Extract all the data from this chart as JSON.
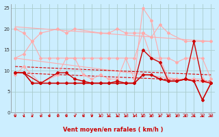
{
  "background_color": "#cceeff",
  "grid_color": "#aacccc",
  "xlim": [
    -0.5,
    23.5
  ],
  "ylim": [
    0,
    26
  ],
  "yticks": [
    0,
    5,
    10,
    15,
    20,
    25
  ],
  "xticks": [
    0,
    1,
    2,
    3,
    4,
    5,
    6,
    7,
    8,
    9,
    10,
    11,
    12,
    13,
    14,
    15,
    16,
    17,
    18,
    19,
    20,
    21,
    22,
    23
  ],
  "xlabel": "Vent moyen/en rafales ( km/h )",
  "series": [
    {
      "x": [
        0,
        23
      ],
      "y": [
        20.5,
        17.0
      ],
      "color": "#ffaaaa",
      "lw": 0.8,
      "marker": null
    },
    {
      "x": [
        0,
        23
      ],
      "y": [
        13.0,
        7.0
      ],
      "color": "#ffaaaa",
      "lw": 0.8,
      "marker": null
    },
    {
      "x": [
        0,
        23
      ],
      "y": [
        11.0,
        9.0
      ],
      "color": "#dd0000",
      "lw": 0.8,
      "marker": null,
      "dashed": true
    },
    {
      "x": [
        0,
        23
      ],
      "y": [
        9.5,
        7.5
      ],
      "color": "#dd0000",
      "lw": 0.8,
      "marker": null,
      "dashed": true
    },
    {
      "x": [
        0,
        1,
        2,
        3,
        5,
        6,
        7,
        10,
        11,
        12,
        13,
        14,
        15,
        16,
        17,
        18,
        20,
        22,
        23
      ],
      "y": [
        20,
        19,
        17,
        19,
        20,
        19,
        20,
        19,
        19,
        20,
        19,
        19,
        19,
        18,
        21,
        19,
        17,
        17,
        17
      ],
      "color": "#ffaaaa",
      "lw": 0.8,
      "marker": "D",
      "ms": 2
    },
    {
      "x": [
        0,
        1,
        2,
        3,
        4,
        5,
        6,
        7,
        8,
        9,
        10,
        11,
        12,
        13,
        14,
        15,
        16,
        17,
        18,
        19,
        20,
        21,
        22,
        23
      ],
      "y": [
        13,
        14,
        17,
        13,
        13,
        13,
        13,
        13,
        13,
        13,
        13,
        13,
        13,
        13,
        13,
        19,
        13,
        13,
        13,
        12,
        13,
        13,
        13,
        8
      ],
      "color": "#ffaaaa",
      "lw": 0.8,
      "marker": "D",
      "ms": 2
    },
    {
      "x": [
        0,
        1,
        3,
        5,
        6,
        7,
        8,
        9,
        10,
        11,
        12,
        13,
        14,
        15,
        16,
        17,
        18,
        19,
        20,
        21,
        22,
        23
      ],
      "y": [
        9,
        11,
        7,
        9,
        13,
        13,
        9,
        8,
        9,
        8,
        8,
        13,
        8,
        25,
        22,
        13,
        8,
        8,
        8,
        8,
        8,
        7
      ],
      "color": "#ffaaaa",
      "lw": 0.8,
      "marker": "D",
      "ms": 2
    },
    {
      "x": [
        0,
        1,
        3,
        5,
        6,
        7,
        8,
        9,
        10,
        11,
        12,
        13,
        14,
        15,
        16,
        17,
        18,
        19,
        20,
        21,
        22,
        23
      ],
      "y": [
        9.5,
        9.5,
        7,
        9.5,
        9.5,
        8,
        7.5,
        7,
        7,
        7,
        7.5,
        7,
        7,
        15,
        13,
        12,
        7.5,
        7.5,
        8,
        17,
        7.5,
        7
      ],
      "color": "#cc0000",
      "lw": 1.0,
      "marker": "D",
      "ms": 2
    },
    {
      "x": [
        0,
        1,
        2,
        3,
        4,
        5,
        6,
        7,
        8,
        9,
        10,
        11,
        12,
        13,
        14,
        15,
        16,
        17,
        18,
        19,
        20,
        21,
        22,
        23
      ],
      "y": [
        9.5,
        9.5,
        7,
        7,
        7,
        7,
        7,
        7,
        7,
        7,
        7,
        7,
        7,
        7,
        7,
        9,
        9,
        8,
        7.5,
        7.5,
        8,
        7.5,
        3,
        7
      ],
      "color": "#cc0000",
      "lw": 1.2,
      "marker": "D",
      "ms": 2
    }
  ]
}
